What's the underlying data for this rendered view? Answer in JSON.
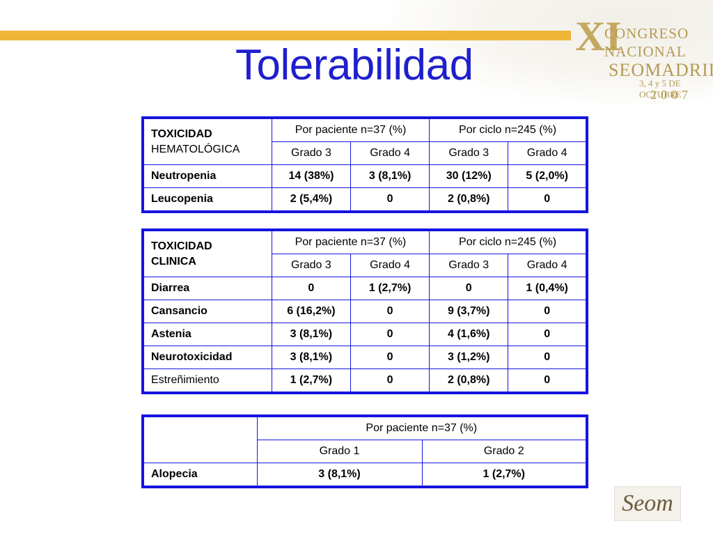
{
  "slide": {
    "title": "Tolerabilidad"
  },
  "branding": {
    "congress_roman": "XI",
    "congress_line1": "CONGRESO",
    "congress_line2": "NACIONAL",
    "congress_line3": "SEOMADRID",
    "congress_dates": "3, 4 y 5 DE OCTUBRE",
    "congress_year": "2007",
    "bottom_logo_text": "Seom"
  },
  "colors": {
    "title": "#1f1fcc",
    "table_border": "#1414e0",
    "accent_bar": "#f0b437"
  },
  "table_hematologic": {
    "header_line1": "TOXICIDAD",
    "header_line2": "HEMATOLÓGICA",
    "group1": "Por paciente n=37 (%)",
    "group2": "Por ciclo n=245 (%)",
    "subheaders": [
      "Grado 3",
      "Grado 4",
      "Grado 3",
      "Grado 4"
    ],
    "rows": [
      {
        "label": "Neutropenia",
        "values": [
          "14 (38%)",
          "3 (8,1%)",
          "30 (12%)",
          "5 (2,0%)"
        ]
      },
      {
        "label": "Leucopenia",
        "values": [
          "2 (5,4%)",
          "0",
          "2 (0,8%)",
          "0"
        ]
      }
    ]
  },
  "table_clinical": {
    "header_line1": "TOXICIDAD",
    "header_line2": "CLINICA",
    "group1": "Por paciente n=37 (%)",
    "group2": "Por ciclo n=245 (%)",
    "subheaders": [
      "Grado 3",
      "Grado 4",
      "Grado 3",
      "Grado 4"
    ],
    "rows": [
      {
        "label": "Diarrea",
        "values": [
          "0",
          "1 (2,7%)",
          "0",
          "1 (0,4%)"
        ]
      },
      {
        "label": "Cansancio",
        "values": [
          "6 (16,2%)",
          "0",
          "9 (3,7%)",
          "0"
        ]
      },
      {
        "label": "Astenia",
        "values": [
          "3 (8,1%)",
          "0",
          "4 (1,6%)",
          "0"
        ]
      },
      {
        "label": "Neurotoxicidad",
        "values": [
          "3 (8,1%)",
          "0",
          "3 (1,2%)",
          "0"
        ]
      },
      {
        "label": "Estreñimiento",
        "values": [
          "1 (2,7%)",
          "0",
          "2 (0,8%)",
          "0"
        ]
      }
    ]
  },
  "table_alopecia": {
    "group1": "Por paciente n=37 (%)",
    "subheaders": [
      "Grado 1",
      "Grado 2"
    ],
    "rows": [
      {
        "label": "Alopecia",
        "values": [
          "3 (8,1%)",
          "1 (2,7%)"
        ]
      }
    ]
  }
}
